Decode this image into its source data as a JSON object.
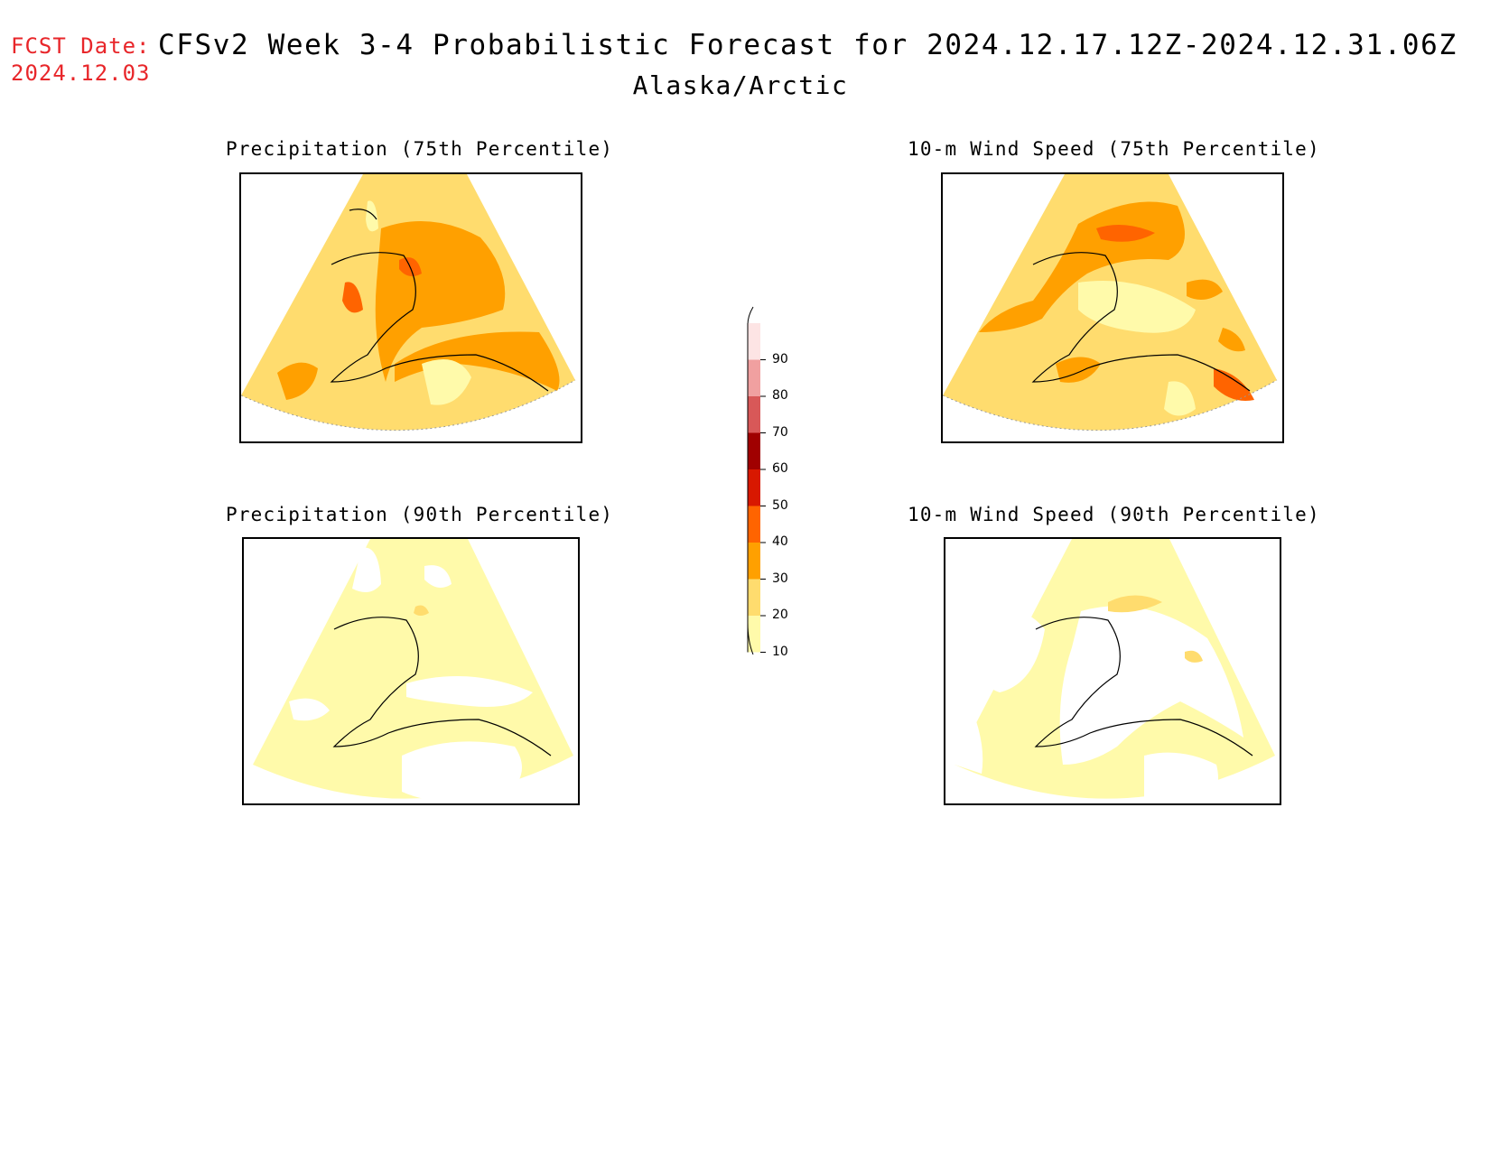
{
  "header": {
    "fcst_label": "FCST Date:",
    "fcst_date": "2024.12.03",
    "title": "CFSv2 Week 3-4 Probabilistic Forecast for 2024.12.17.12Z-2024.12.31.06Z",
    "region": "Alaska/Arctic"
  },
  "panels": [
    {
      "title": "Precipitation (75th Percentile)"
    },
    {
      "title": "10-m Wind Speed (75th Percentile)"
    },
    {
      "title": "Precipitation (90th Percentile)"
    },
    {
      "title": "10-m Wind Speed (90th Percentile)"
    }
  ],
  "colorbar": {
    "labels": [
      "90",
      "80",
      "70",
      "60",
      "50",
      "40",
      "30",
      "20",
      "10"
    ],
    "colors": [
      "#fde4e4",
      "#f0a0a0",
      "#d85858",
      "#a00000",
      "#d81800",
      "#ff6400",
      "#ffa000",
      "#ffdc6e",
      "#fffaaa"
    ]
  },
  "palette": {
    "p10": "#fffaaa",
    "p20": "#ffdc6e",
    "p30": "#ffa000",
    "p40": "#ff6400",
    "red": "#e8262a"
  }
}
